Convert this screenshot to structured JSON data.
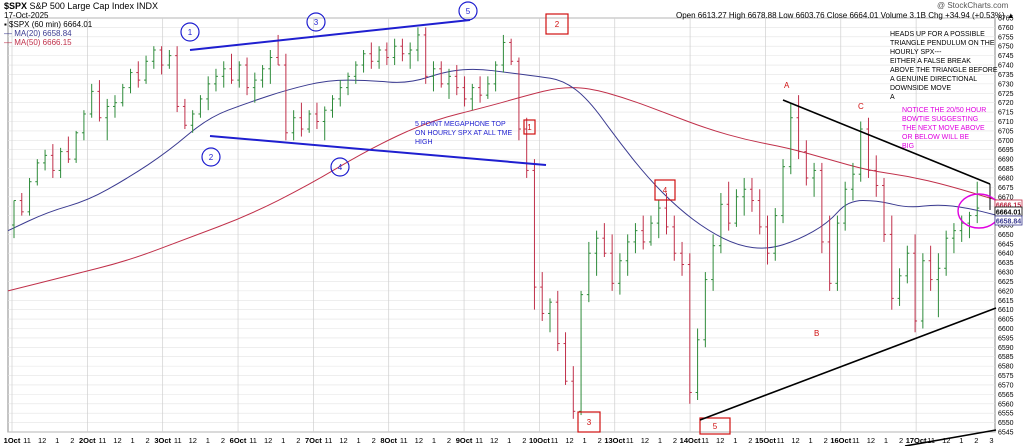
{
  "header": {
    "symbol": "$SPX",
    "name": "S&P 500 Large Cap Index",
    "exchange": "INDX",
    "date": "17-Oct-2025",
    "watermark": "@ StockCharts.com",
    "ohlc": "Open 6613.27  High 6678.88  Low 6603.76  Close 6664.01  Volume 3.1B  Chg +34.94 (+0.53%) ▲",
    "legend_price": "▪ $SPX (60 min) 6664.01",
    "legend_ma20": "— MA(20) 6658.84",
    "legend_ma50": "— MA(50) 6666.15"
  },
  "colors": {
    "up": "#2e8b3a",
    "down": "#c0304a",
    "ma20": "#3a3a90",
    "ma50": "#c0304a",
    "blue_ann": "#1f1fd0",
    "red_box": "#d01010",
    "magenta": "#e000e0",
    "grid": "#e3e3e3"
  },
  "chart_data": {
    "type": "candlestick",
    "interval": "60 min",
    "ylim": [
      6545,
      6765
    ],
    "y_ticks": [
      6545,
      6550,
      6555,
      6560,
      6565,
      6570,
      6575,
      6580,
      6585,
      6590,
      6595,
      6600,
      6605,
      6610,
      6615,
      6620,
      6625,
      6630,
      6635,
      6640,
      6645,
      6650,
      6655,
      6660,
      6665,
      6670,
      6675,
      6680,
      6685,
      6690,
      6695,
      6700,
      6705,
      6710,
      6715,
      6720,
      6725,
      6730,
      6735,
      6740,
      6745,
      6750,
      6755,
      6760,
      6765
    ],
    "x_tick_labels": [
      "1Oct",
      "11",
      "12",
      "1",
      "2",
      "2Oct",
      "11",
      "12",
      "1",
      "2",
      "3Oct",
      "11",
      "12",
      "1",
      "2",
      "6Oct",
      "11",
      "12",
      "1",
      "2",
      "7Oct",
      "11",
      "12",
      "1",
      "2",
      "8Oct",
      "11",
      "12",
      "1",
      "2",
      "9Oct",
      "11",
      "12",
      "1",
      "2",
      "10Oct",
      "11",
      "12",
      "1",
      "2",
      "13Oct",
      "11",
      "12",
      "1",
      "2",
      "14Oct",
      "11",
      "12",
      "1",
      "2",
      "15Oct",
      "11",
      "12",
      "1",
      "2",
      "16Oct",
      "11",
      "12",
      "1",
      "2",
      "17Oct",
      "11",
      "12",
      "1",
      "2",
      "3"
    ],
    "price_label": "6664.01",
    "ma20_label": "6658.84",
    "ma50_label": "6666.15",
    "bars": [
      [
        6655,
        6668,
        6648,
        6668
      ],
      [
        6668,
        6672,
        6660,
        6662
      ],
      [
        6662,
        6680,
        6660,
        6678
      ],
      [
        6678,
        6690,
        6676,
        6688
      ],
      [
        6688,
        6695,
        6684,
        6692
      ],
      [
        6692,
        6698,
        6680,
        6684
      ],
      [
        6684,
        6696,
        6680,
        6694
      ],
      [
        6694,
        6702,
        6688,
        6690
      ],
      [
        6690,
        6705,
        6688,
        6704
      ],
      [
        6704,
        6716,
        6700,
        6714
      ],
      [
        6714,
        6730,
        6712,
        6726
      ],
      [
        6726,
        6732,
        6710,
        6712
      ],
      [
        6712,
        6722,
        6700,
        6718
      ],
      [
        6718,
        6724,
        6712,
        6720
      ],
      [
        6720,
        6730,
        6718,
        6728
      ],
      [
        6728,
        6738,
        6725,
        6736
      ],
      [
        6736,
        6742,
        6728,
        6732
      ],
      [
        6732,
        6745,
        6730,
        6742
      ],
      [
        6742,
        6750,
        6738,
        6748
      ],
      [
        6748,
        6750,
        6735,
        6740
      ],
      [
        6740,
        6748,
        6738,
        6745
      ],
      [
        6745,
        6750,
        6715,
        6718
      ],
      [
        6718,
        6722,
        6706,
        6708
      ],
      [
        6708,
        6716,
        6704,
        6714
      ],
      [
        6714,
        6724,
        6712,
        6722
      ],
      [
        6722,
        6734,
        6716,
        6730
      ],
      [
        6730,
        6738,
        6726,
        6734
      ],
      [
        6734,
        6742,
        6728,
        6738
      ],
      [
        6738,
        6746,
        6730,
        6732
      ],
      [
        6732,
        6742,
        6728,
        6740
      ],
      [
        6740,
        6744,
        6724,
        6728
      ],
      [
        6728,
        6736,
        6720,
        6732
      ],
      [
        6732,
        6740,
        6728,
        6738
      ],
      [
        6738,
        6748,
        6730,
        6744
      ],
      [
        6744,
        6756,
        6740,
        6740
      ],
      [
        6740,
        6746,
        6700,
        6704
      ],
      [
        6704,
        6716,
        6700,
        6712
      ],
      [
        6712,
        6720,
        6702,
        6706
      ],
      [
        6706,
        6716,
        6704,
        6714
      ],
      [
        6714,
        6720,
        6706,
        6710
      ],
      [
        6710,
        6718,
        6700,
        6716
      ],
      [
        6716,
        6724,
        6712,
        6722
      ],
      [
        6722,
        6732,
        6718,
        6728
      ],
      [
        6728,
        6736,
        6724,
        6734
      ],
      [
        6734,
        6742,
        6730,
        6740
      ],
      [
        6740,
        6748,
        6736,
        6746
      ],
      [
        6746,
        6752,
        6738,
        6742
      ],
      [
        6742,
        6750,
        6738,
        6748
      ],
      [
        6748,
        6752,
        6740,
        6744
      ],
      [
        6744,
        6754,
        6740,
        6750
      ],
      [
        6750,
        6754,
        6742,
        6746
      ],
      [
        6746,
        6752,
        6738,
        6748
      ],
      [
        6748,
        6760,
        6742,
        6756
      ],
      [
        6756,
        6760,
        6730,
        6734
      ],
      [
        6734,
        6742,
        6726,
        6738
      ],
      [
        6738,
        6742,
        6728,
        6730
      ],
      [
        6730,
        6738,
        6722,
        6734
      ],
      [
        6734,
        6740,
        6724,
        6728
      ],
      [
        6728,
        6734,
        6718,
        6722
      ],
      [
        6722,
        6730,
        6716,
        6728
      ],
      [
        6728,
        6734,
        6720,
        6724
      ],
      [
        6724,
        6734,
        6722,
        6730
      ],
      [
        6730,
        6742,
        6726,
        6740
      ],
      [
        6740,
        6756,
        6736,
        6752
      ],
      [
        6752,
        6754,
        6740,
        6742
      ],
      [
        6742,
        6744,
        6700,
        6706
      ],
      [
        6706,
        6712,
        6680,
        6684
      ],
      [
        6684,
        6690,
        6610,
        6622
      ],
      [
        6622,
        6630,
        6604,
        6608
      ],
      [
        6608,
        6616,
        6598,
        6614
      ],
      [
        6614,
        6620,
        6588,
        6592
      ],
      [
        6592,
        6598,
        6570,
        6572
      ],
      [
        6572,
        6580,
        6552,
        6556
      ],
      [
        6556,
        6620,
        6554,
        6618
      ],
      [
        6618,
        6646,
        6614,
        6640
      ],
      [
        6640,
        6652,
        6628,
        6648
      ],
      [
        6648,
        6656,
        6638,
        6640
      ],
      [
        6640,
        6650,
        6620,
        6624
      ],
      [
        6624,
        6640,
        6618,
        6636
      ],
      [
        6636,
        6650,
        6628,
        6646
      ],
      [
        6646,
        6656,
        6640,
        6652
      ],
      [
        6652,
        6660,
        6642,
        6646
      ],
      [
        6646,
        6660,
        6644,
        6656
      ],
      [
        6656,
        6668,
        6648,
        6664
      ],
      [
        6664,
        6672,
        6650,
        6654
      ],
      [
        6654,
        6660,
        6636,
        6640
      ],
      [
        6640,
        6646,
        6628,
        6634
      ],
      [
        6634,
        6640,
        6560,
        6566
      ],
      [
        6566,
        6600,
        6562,
        6594
      ],
      [
        6594,
        6630,
        6590,
        6626
      ],
      [
        6626,
        6650,
        6620,
        6644
      ],
      [
        6644,
        6672,
        6640,
        6666
      ],
      [
        6666,
        6678,
        6652,
        6656
      ],
      [
        6656,
        6674,
        6654,
        6670
      ],
      [
        6670,
        6680,
        6660,
        6674
      ],
      [
        6674,
        6680,
        6662,
        6668
      ],
      [
        6668,
        6674,
        6650,
        6654
      ],
      [
        6654,
        6660,
        6634,
        6640
      ],
      [
        6640,
        6664,
        6636,
        6660
      ],
      [
        6660,
        6690,
        6656,
        6686
      ],
      [
        6686,
        6720,
        6682,
        6712
      ],
      [
        6712,
        6724,
        6690,
        6694
      ],
      [
        6694,
        6700,
        6676,
        6680
      ],
      [
        6680,
        6688,
        6670,
        6684
      ],
      [
        6684,
        6688,
        6640,
        6646
      ],
      [
        6646,
        6660,
        6620,
        6624
      ],
      [
        6624,
        6660,
        6620,
        6656
      ],
      [
        6656,
        6678,
        6652,
        6674
      ],
      [
        6674,
        6688,
        6668,
        6682
      ],
      [
        6682,
        6710,
        6678,
        6706
      ],
      [
        6706,
        6712,
        6680,
        6684
      ],
      [
        6684,
        6692,
        6670,
        6676
      ],
      [
        6676,
        6680,
        6646,
        6650
      ],
      [
        6650,
        6660,
        6610,
        6616
      ],
      [
        6616,
        6632,
        6612,
        6628
      ],
      [
        6628,
        6644,
        6624,
        6640
      ],
      [
        6640,
        6650,
        6598,
        6604
      ],
      [
        6604,
        6640,
        6600,
        6636
      ],
      [
        6636,
        6644,
        6620,
        6626
      ],
      [
        6626,
        6640,
        6606,
        6632
      ],
      [
        6632,
        6652,
        6628,
        6648
      ],
      [
        6648,
        6656,
        6640,
        6652
      ],
      [
        6652,
        6660,
        6646,
        6656
      ],
      [
        6656,
        6662,
        6648,
        6660
      ],
      [
        6660,
        6678,
        6656,
        6664
      ]
    ],
    "ma20": [
      [
        0,
        6652
      ],
      [
        40,
        6662
      ],
      [
        80,
        6668
      ],
      [
        120,
        6680
      ],
      [
        160,
        6694
      ],
      [
        200,
        6712
      ],
      [
        240,
        6720
      ],
      [
        280,
        6727
      ],
      [
        320,
        6732
      ],
      [
        360,
        6732
      ],
      [
        400,
        6730
      ],
      [
        440,
        6737
      ],
      [
        470,
        6738
      ],
      [
        500,
        6736
      ],
      [
        530,
        6734
      ],
      [
        555,
        6732
      ],
      [
        580,
        6722
      ],
      [
        610,
        6700
      ],
      [
        640,
        6680
      ],
      [
        670,
        6664
      ],
      [
        700,
        6652
      ],
      [
        730,
        6644
      ],
      [
        760,
        6642
      ],
      [
        790,
        6647
      ],
      [
        820,
        6656
      ],
      [
        840,
        6668
      ],
      [
        870,
        6668
      ],
      [
        900,
        6664
      ],
      [
        930,
        6666
      ],
      [
        960,
        6664
      ],
      [
        990,
        6660
      ]
    ],
    "ma50": [
      [
        0,
        6620
      ],
      [
        60,
        6628
      ],
      [
        120,
        6636
      ],
      [
        180,
        6648
      ],
      [
        240,
        6660
      ],
      [
        300,
        6676
      ],
      [
        360,
        6695
      ],
      [
        420,
        6710
      ],
      [
        480,
        6718
      ],
      [
        520,
        6724
      ],
      [
        550,
        6728
      ],
      [
        580,
        6728
      ],
      [
        620,
        6722
      ],
      [
        660,
        6714
      ],
      [
        700,
        6706
      ],
      [
        740,
        6700
      ],
      [
        780,
        6696
      ],
      [
        820,
        6690
      ],
      [
        860,
        6684
      ],
      [
        900,
        6681
      ],
      [
        940,
        6676
      ],
      [
        990,
        6668
      ]
    ]
  },
  "annotations": {
    "blue_numbers": [
      "1",
      "2",
      "3",
      "4",
      "5"
    ],
    "red_box_labels": [
      "2",
      "1",
      "4",
      "3",
      "5"
    ],
    "red_letters": [
      "A",
      "C",
      "B"
    ],
    "megaphone_text": [
      "5 POINT MEGAPHONE TOP",
      "ON HOURLY SPX AT ALL TME",
      "HIGH"
    ],
    "triangle_text": [
      "HEADS UP FOR A POSSIBLE",
      "TRIANGLE PENDULUM ON THE",
      "HOURLY SPX---",
      "EITHER A FALSE BREAK",
      "ABOVE THE TRIANGLE BEFORE",
      "A GENUINE DIRECTIONAL",
      "DOWNSIDE MOVE",
      "A"
    ],
    "bowtie_text": [
      "NOTICE THE 20/50 HOUR",
      "BOWTIE SUGGESTING",
      "THE NEXT MOVE ABOVE",
      "OR BELOW WILL BE",
      "BIG"
    ]
  }
}
